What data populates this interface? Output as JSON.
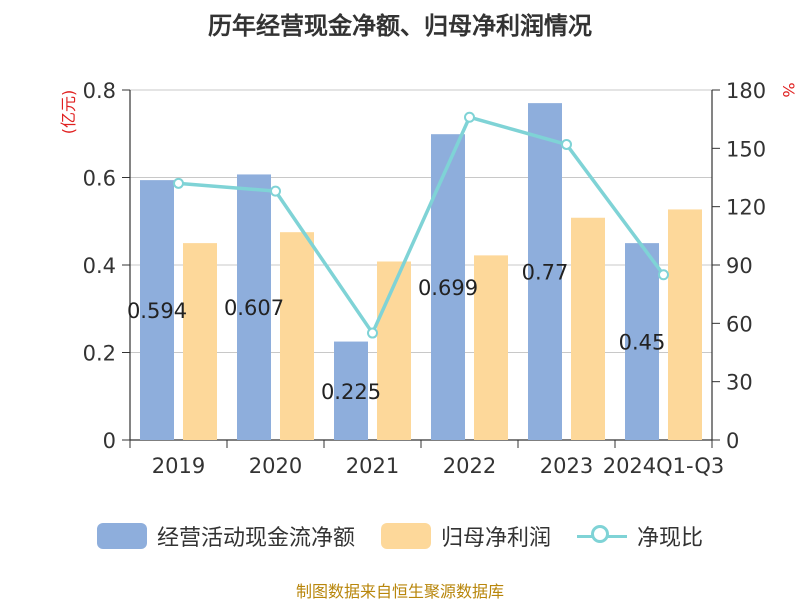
{
  "title": "历年经营现金净额、归母净利润情况",
  "source": "制图数据来自恒生聚源数据库",
  "chart_data": {
    "type": "bar",
    "categories": [
      "2019",
      "2020",
      "2021",
      "2022",
      "2023",
      "2024Q1-Q3"
    ],
    "series": [
      {
        "name": "经营活动现金流净额",
        "type": "bar",
        "axis": "left",
        "color": "#8eaedc",
        "values": [
          0.594,
          0.607,
          0.225,
          0.699,
          0.77,
          0.45
        ],
        "labels": [
          "0.594",
          "0.607",
          "0.225",
          "0.699",
          "0.77",
          "0.45"
        ]
      },
      {
        "name": "归母净利润",
        "type": "bar",
        "axis": "left",
        "color": "#fdd89a",
        "values": [
          0.45,
          0.475,
          0.408,
          0.422,
          0.508,
          0.527
        ]
      },
      {
        "name": "净现比",
        "type": "line",
        "axis": "right",
        "color": "#7fd3d6",
        "values": [
          132,
          128,
          55,
          166,
          152,
          85
        ]
      }
    ],
    "y_left": {
      "label": "(亿元)",
      "ylim": [
        0,
        0.8
      ],
      "ticks": [
        "0",
        "0.2",
        "0.4",
        "0.6",
        "0.8"
      ]
    },
    "y_right": {
      "label": "%",
      "ylim": [
        0,
        180
      ],
      "ticks": [
        "0",
        "30",
        "60",
        "90",
        "120",
        "150",
        "180"
      ]
    },
    "grid": true,
    "legend_position": "bottom"
  }
}
